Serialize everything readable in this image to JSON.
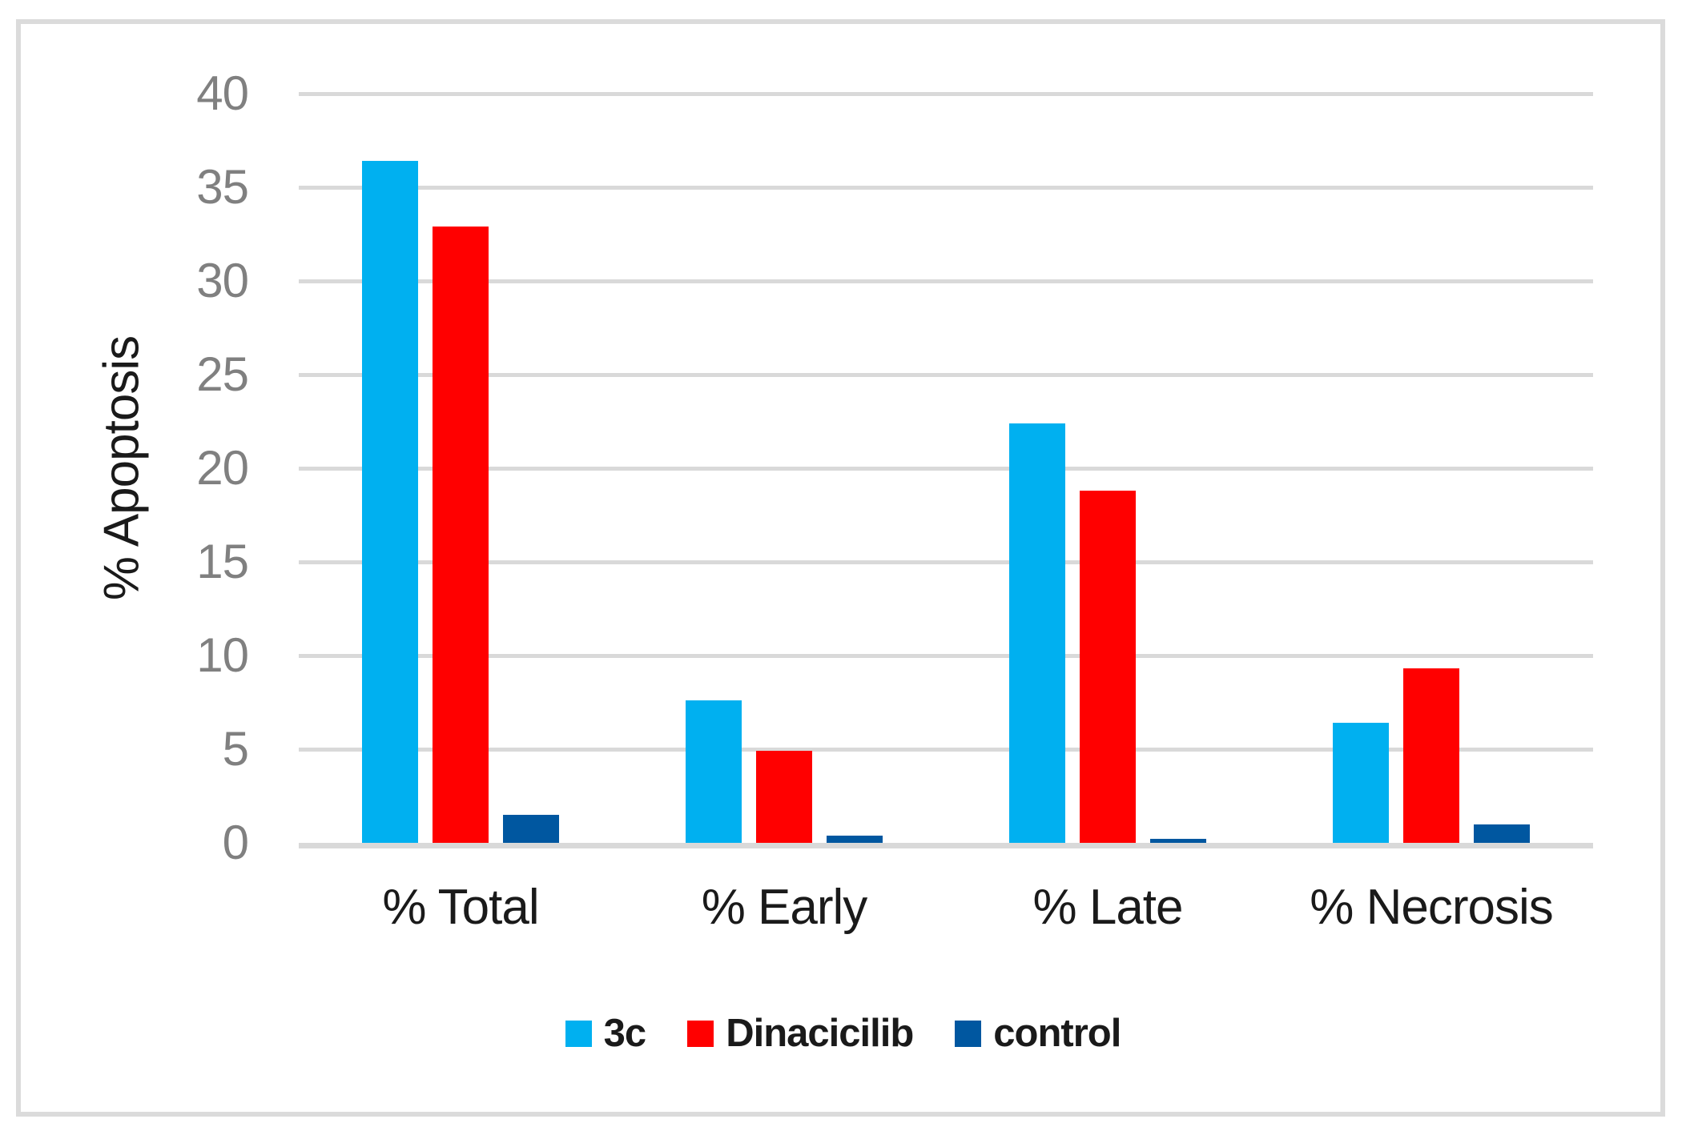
{
  "chart_data": {
    "type": "bar",
    "categories": [
      "% Total",
      "% Early",
      "% Late",
      "% Necrosis"
    ],
    "series": [
      {
        "name": "3c",
        "color": "#00B0F0",
        "values": [
          36.4,
          7.6,
          22.4,
          6.4
        ]
      },
      {
        "name": "Dinacicilib",
        "color": "#FF0000",
        "values": [
          32.9,
          4.9,
          18.8,
          9.3
        ]
      },
      {
        "name": "control",
        "color": "#0057A0",
        "values": [
          1.5,
          0.4,
          0.2,
          1.0
        ]
      }
    ],
    "title": "",
    "xlabel": "",
    "ylabel": "% Apoptosis",
    "ylim": [
      0,
      40
    ],
    "yticks": [
      0,
      5,
      10,
      15,
      20,
      25,
      30,
      35,
      40
    ],
    "grid": true,
    "legend_position": "bottom"
  },
  "styles": {
    "background": "#FFFFFF",
    "frame_border_color": "#DBDBDB",
    "gridline_color": "#D9D9D9",
    "axis_line_color": "#D9D9D9",
    "tick_label_color": "#808080",
    "text_color": "#1A1A1A"
  }
}
